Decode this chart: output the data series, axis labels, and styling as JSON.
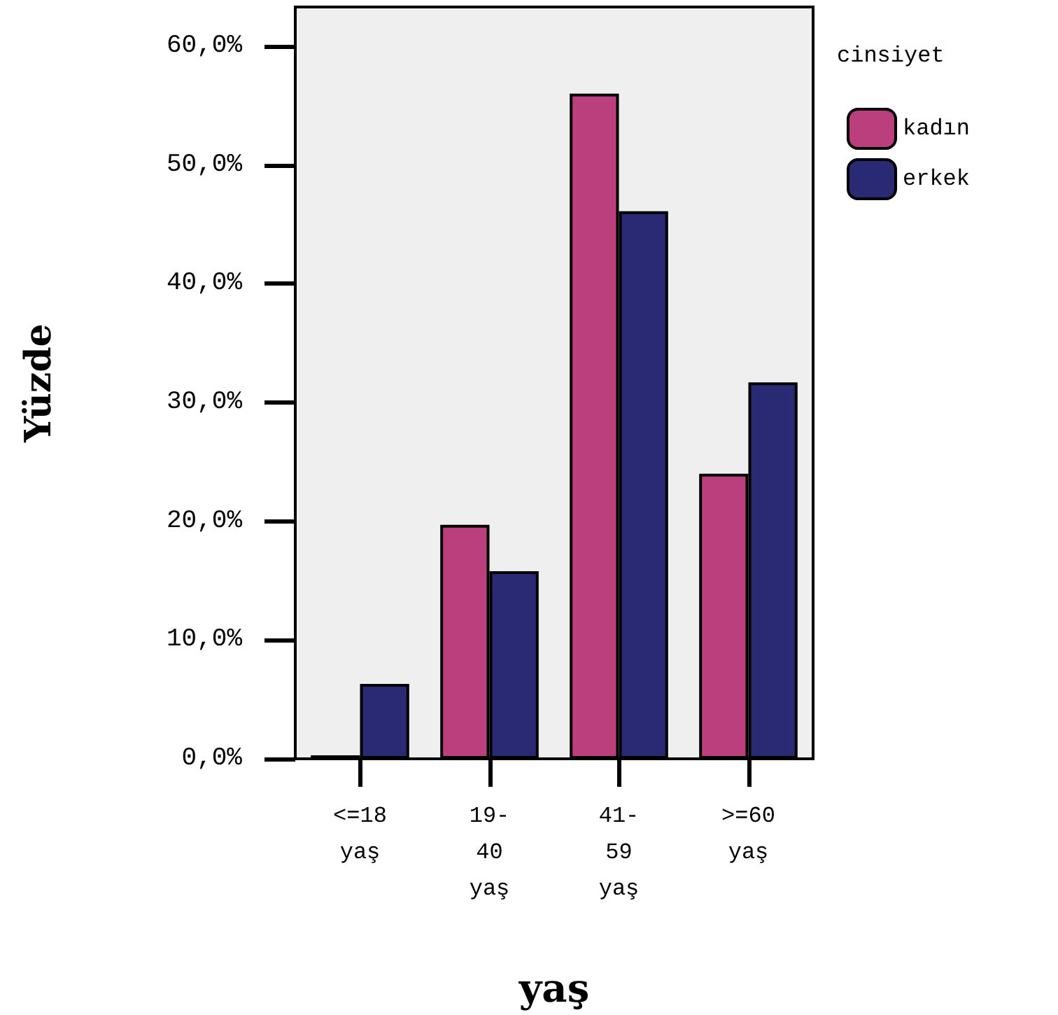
{
  "chart_data": {
    "type": "bar",
    "xlabel": "yaş",
    "ylabel": "Yüzde",
    "legend_title": "cinsiyet",
    "categories": [
      "<=18 yaş",
      "19-40 yaş",
      "41-59 yaş",
      ">=60 yaş"
    ],
    "series": [
      {
        "name": "kadın",
        "color": "#bb3f7d",
        "values": [
          0.3,
          19.7,
          56.0,
          24.0
        ]
      },
      {
        "name": "erkek",
        "color": "#292a73",
        "values": [
          6.3,
          15.8,
          46.1,
          31.7
        ]
      }
    ],
    "ylim": [
      0,
      63.3
    ],
    "yticks": [
      {
        "value": 0,
        "label": "0,0%"
      },
      {
        "value": 10,
        "label": "10,0%"
      },
      {
        "value": 20,
        "label": "20,0%"
      },
      {
        "value": 30,
        "label": "30,0%"
      },
      {
        "value": 40,
        "label": "40,0%"
      },
      {
        "value": 50,
        "label": "50,0%"
      },
      {
        "value": 60,
        "label": "60,0%"
      }
    ],
    "grid": false,
    "legend": "top right"
  }
}
